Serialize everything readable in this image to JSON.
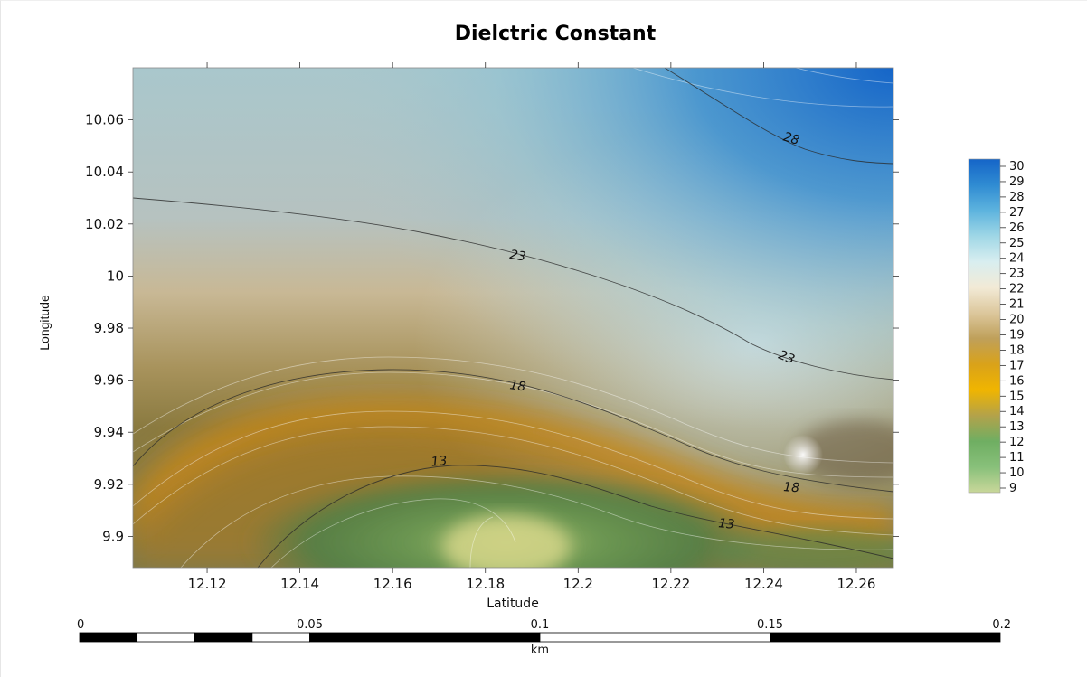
{
  "title": "Dielctric Constant",
  "map": {
    "xlabel": "Latitude",
    "ylabel": "Longitude",
    "x_range": [
      12.104,
      12.268
    ],
    "y_range": [
      9.888,
      10.08
    ],
    "x_ticks": [
      "12.12",
      "12.14",
      "12.16",
      "12.18",
      "12.2",
      "12.22",
      "12.24",
      "12.26"
    ],
    "x_tick_values": [
      12.12,
      12.14,
      12.16,
      12.18,
      12.2,
      12.22,
      12.24,
      12.26
    ],
    "y_ticks": [
      "9.9",
      "9.92",
      "9.94",
      "9.96",
      "9.98",
      "10",
      "10.02",
      "10.04",
      "10.06"
    ],
    "y_tick_values": [
      9.9,
      9.92,
      9.94,
      9.96,
      9.98,
      10.0,
      10.02,
      10.04,
      10.06
    ],
    "contour_labels": [
      {
        "text": "28",
        "x": 12.246,
        "y": 10.053,
        "angle": 16
      },
      {
        "text": "23",
        "x": 12.187,
        "y": 10.008,
        "angle": 10
      },
      {
        "text": "23",
        "x": 12.245,
        "y": 9.969,
        "angle": 22
      },
      {
        "text": "18",
        "x": 12.187,
        "y": 9.958,
        "angle": 8
      },
      {
        "text": "18",
        "x": 12.246,
        "y": 9.919,
        "angle": 4
      },
      {
        "text": "13",
        "x": 12.17,
        "y": 9.929,
        "angle": -6
      },
      {
        "text": "13",
        "x": 12.232,
        "y": 9.905,
        "angle": 6
      }
    ]
  },
  "colorbar": {
    "labels": [
      "30",
      "29",
      "28",
      "27",
      "26",
      "25",
      "24",
      "23",
      "22",
      "21",
      "20",
      "19",
      "18",
      "17",
      "16",
      "15",
      "14",
      "13",
      "12",
      "11",
      "10",
      "9"
    ],
    "colors_top_to_bottom": [
      "#1565c8",
      "#2f8bd2",
      "#5db3de",
      "#9fd7e6",
      "#d8eef0",
      "#f2ead6",
      "#dcc79c",
      "#bfa05a",
      "#d9a21a",
      "#f0b500",
      "#b3a24a",
      "#6fae62",
      "#88c07a",
      "#c9d79a"
    ]
  },
  "scale_bar": {
    "labels": [
      "0",
      "0.05",
      "0.1",
      "0.15",
      "0.2"
    ],
    "unit": "km"
  }
}
